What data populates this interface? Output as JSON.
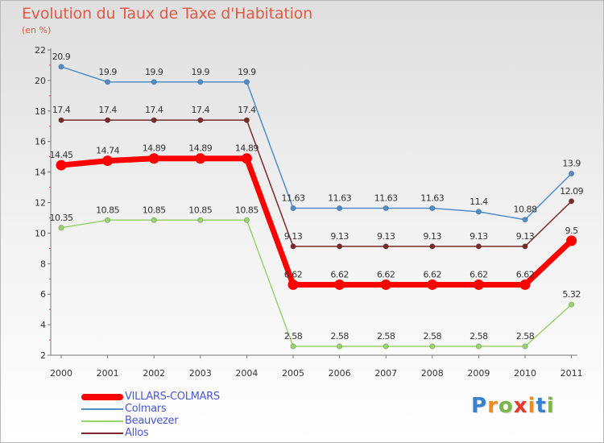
{
  "chart_data": {
    "type": "line",
    "title": "Evolution du Taux de Taxe d'Habitation",
    "subtitle": "(en %)",
    "categories": [
      "2000",
      "2001",
      "2002",
      "2003",
      "2004",
      "2005",
      "2006",
      "2007",
      "2008",
      "2009",
      "2010",
      "2011"
    ],
    "ylim": [
      2,
      22
    ],
    "yticks": [
      2,
      4,
      6,
      8,
      10,
      12,
      14,
      16,
      18,
      20,
      22
    ],
    "grid": false,
    "legend_position": "bottom-left",
    "series": [
      {
        "name": "VILLARS-COLMARS",
        "color": "#ff0000",
        "values": [
          14.45,
          14.74,
          14.89,
          14.89,
          14.89,
          6.62,
          6.62,
          6.62,
          6.62,
          6.62,
          6.62,
          9.5
        ],
        "labels": [
          "14.45",
          "14.74",
          "14.89",
          "14.89",
          "14.89",
          "6.62",
          "6.62",
          "6.62",
          "6.62",
          "6.62",
          "6.62",
          "9.5"
        ]
      },
      {
        "name": "Colmars",
        "color": "#4f8ec9",
        "values": [
          20.9,
          19.9,
          19.9,
          19.9,
          19.9,
          11.63,
          11.63,
          11.63,
          11.63,
          11.4,
          10.88,
          13.9
        ],
        "labels": [
          "20.9",
          "19.9",
          "19.9",
          "19.9",
          "19.9",
          "11.63",
          "11.63",
          "11.63",
          "11.63",
          "11.4",
          "10.88",
          "13.9"
        ]
      },
      {
        "name": "Beauvezer",
        "color": "#99d36b",
        "values": [
          10.35,
          10.85,
          10.85,
          10.85,
          10.85,
          2.58,
          2.58,
          2.58,
          2.58,
          2.58,
          2.58,
          5.32
        ],
        "labels": [
          "10.35",
          "10.85",
          "10.85",
          "10.85",
          "10.85",
          "2.58",
          "2.58",
          "2.58",
          "2.58",
          "2.58",
          "2.58",
          "5.32"
        ]
      },
      {
        "name": "Allos",
        "color": "#7a2a2a",
        "values": [
          17.4,
          17.4,
          17.4,
          17.4,
          17.4,
          9.13,
          9.13,
          9.13,
          9.13,
          9.13,
          9.13,
          12.09
        ],
        "labels": [
          "17.4",
          "17.4",
          "17.4",
          "17.4",
          "17.4",
          "9.13",
          "9.13",
          "9.13",
          "9.13",
          "9.13",
          "9.13",
          "12.09"
        ]
      }
    ]
  },
  "legend": {
    "items": [
      {
        "label": "VILLARS-COLMARS",
        "color": "#ff0000"
      },
      {
        "label": "Colmars",
        "color": "#4f8ec9"
      },
      {
        "label": "Beauvezer",
        "color": "#99d36b"
      },
      {
        "label": "Allos",
        "color": "#7a2a2a"
      }
    ]
  },
  "logo": {
    "text": "Proxiti",
    "letter_colors": [
      "#3a7fd0",
      "#f08a1f",
      "#7ab648",
      "#e8372c",
      "#f08a1f",
      "#3a7fd0",
      "#7ab648"
    ]
  }
}
